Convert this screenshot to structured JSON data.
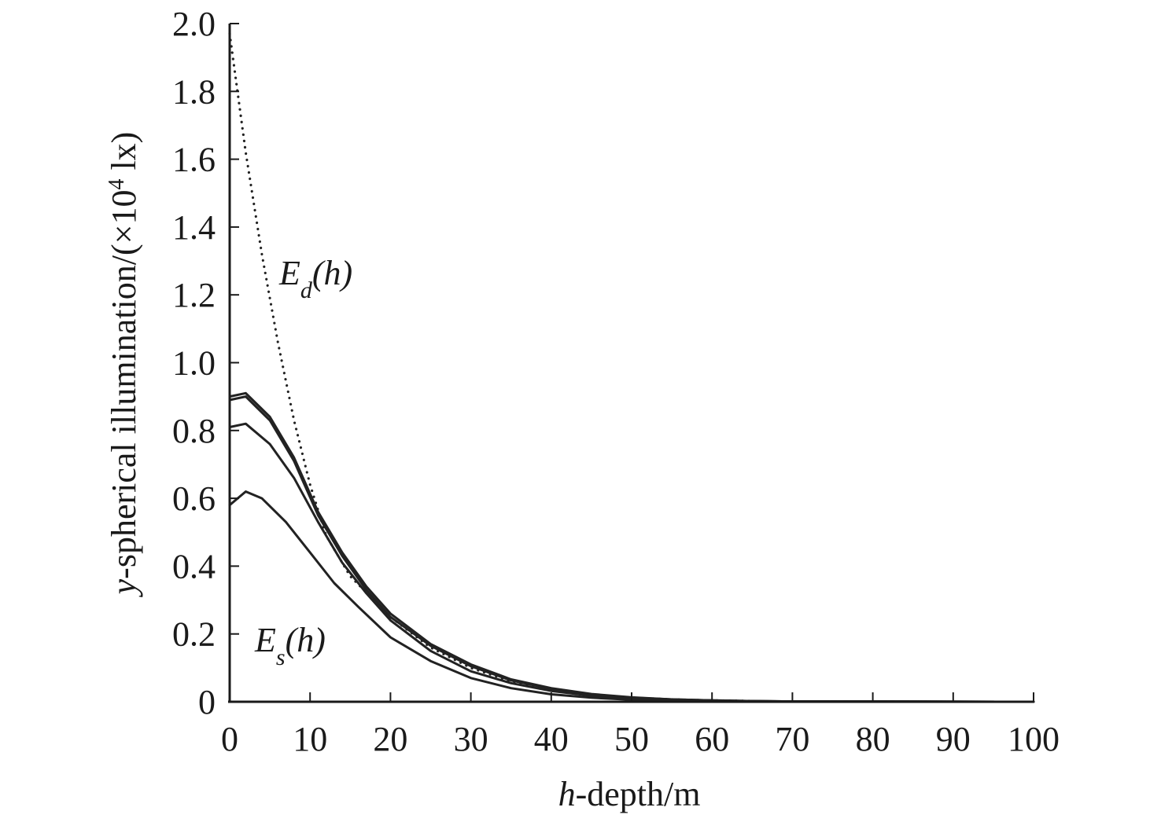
{
  "chart_data": {
    "type": "line",
    "xlabel": {
      "prefix": "h",
      "rest": "-depth/m"
    },
    "ylabel": {
      "prefix": "y",
      "rest": "-spherical illumination/(×10",
      "sup": "4",
      "suffix": " lx)"
    },
    "xlim": [
      0,
      100
    ],
    "ylim": [
      0,
      2.0
    ],
    "x_ticks": [
      "0",
      "10",
      "20",
      "30",
      "40",
      "50",
      "60",
      "70",
      "80",
      "90",
      "100"
    ],
    "y_ticks": [
      "0",
      "0.2",
      "0.4",
      "0.6",
      "0.8",
      "1.0",
      "1.2",
      "1.4",
      "1.6",
      "1.8",
      "2.0"
    ],
    "grid": false,
    "annotations": [
      {
        "main": "E",
        "sub": "d",
        "rest": "(h)"
      },
      {
        "main": "E",
        "sub": "s",
        "rest": "(h)"
      }
    ],
    "series": [
      {
        "style": "dotted",
        "x": [
          0,
          2,
          4,
          6,
          8,
          10,
          12,
          15,
          20,
          25,
          30,
          35,
          40,
          45,
          50,
          55,
          60,
          65
        ],
        "y": [
          1.97,
          1.62,
          1.32,
          1.06,
          0.83,
          0.64,
          0.49,
          0.37,
          0.25,
          0.16,
          0.1,
          0.06,
          0.035,
          0.02,
          0.012,
          0.007,
          0.004,
          0.002
        ]
      },
      {
        "style": "solid",
        "x": [
          0,
          2,
          5,
          8,
          11,
          14,
          17,
          20,
          25,
          30,
          35,
          40,
          45,
          50,
          55,
          60,
          65,
          70,
          100
        ],
        "y": [
          0.9,
          0.91,
          0.84,
          0.72,
          0.56,
          0.44,
          0.34,
          0.26,
          0.17,
          0.11,
          0.066,
          0.04,
          0.023,
          0.013,
          0.007,
          0.004,
          0.002,
          0.001,
          0
        ]
      },
      {
        "style": "solid",
        "x": [
          0,
          2,
          5,
          8,
          11,
          14,
          17,
          20,
          25,
          30,
          35,
          40,
          45,
          50,
          55,
          60,
          65,
          70,
          100
        ],
        "y": [
          0.89,
          0.9,
          0.83,
          0.71,
          0.55,
          0.43,
          0.33,
          0.25,
          0.165,
          0.105,
          0.063,
          0.038,
          0.022,
          0.012,
          0.007,
          0.004,
          0.002,
          0.001,
          0
        ]
      },
      {
        "style": "solid",
        "x": [
          0,
          2,
          5,
          8,
          11,
          14,
          17,
          20,
          25,
          30,
          35,
          40,
          45,
          50,
          55,
          60,
          65,
          70,
          100
        ],
        "y": [
          0.81,
          0.82,
          0.76,
          0.66,
          0.53,
          0.41,
          0.32,
          0.24,
          0.15,
          0.09,
          0.055,
          0.032,
          0.018,
          0.01,
          0.006,
          0.003,
          0.002,
          0.001,
          0
        ]
      },
      {
        "style": "solid",
        "x": [
          0,
          2,
          4,
          7,
          10,
          13,
          16,
          20,
          25,
          30,
          35,
          40,
          45,
          50,
          55,
          60,
          65,
          100
        ],
        "y": [
          0.58,
          0.62,
          0.6,
          0.53,
          0.44,
          0.35,
          0.28,
          0.19,
          0.12,
          0.07,
          0.04,
          0.022,
          0.012,
          0.006,
          0.003,
          0.002,
          0.001,
          0
        ]
      }
    ]
  }
}
